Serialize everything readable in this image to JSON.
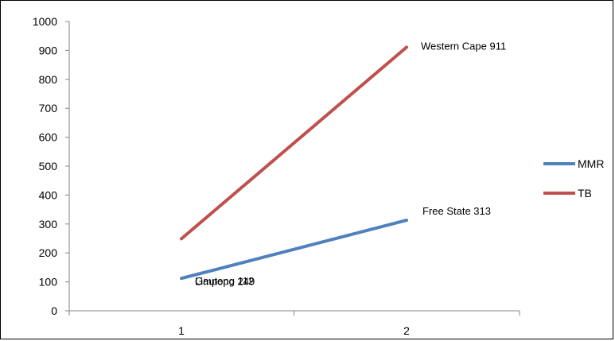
{
  "chart_data": {
    "type": "line",
    "title": "",
    "xlabel": "",
    "ylabel": "",
    "categories": [
      "1",
      "2"
    ],
    "ylim": [
      0,
      1000
    ],
    "yticks": [
      0,
      100,
      200,
      300,
      400,
      500,
      600,
      700,
      800,
      900,
      1000
    ],
    "grid": false,
    "legend_position": "right",
    "series": [
      {
        "name": "MMR",
        "color": "#4f81bd",
        "values": [
          112,
          313
        ],
        "point_labels": [
          "Gauteng 112",
          "Free State 313"
        ]
      },
      {
        "name": "TB",
        "color": "#c0504d",
        "values": [
          249,
          911
        ],
        "point_labels": [
          "Limpopo 249",
          "Western Cape 911"
        ]
      }
    ]
  }
}
